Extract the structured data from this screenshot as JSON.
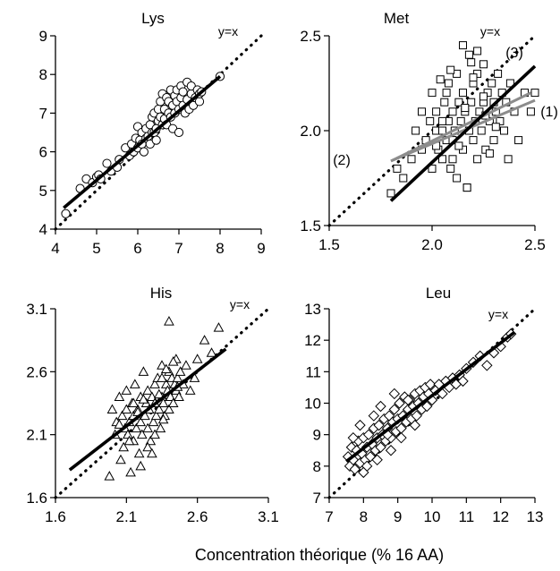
{
  "chart_data": {
    "type": "scatter",
    "xlabel": "Concentration théorique  (% 16 AA)",
    "panels": [
      {
        "title": "Lys",
        "identity_label": "y=x",
        "xlim": [
          4,
          9
        ],
        "ylim": [
          4,
          9
        ],
        "xticks": [
          4,
          5,
          6,
          7,
          8,
          9
        ],
        "yticks": [
          4,
          5,
          6,
          7,
          8,
          9
        ],
        "xtick_labels": [
          "4",
          "5",
          "6",
          "7",
          "8",
          "9"
        ],
        "ytick_labels": [
          "4",
          "5",
          "6",
          "7",
          "8",
          "9"
        ],
        "marker": "circle",
        "fit_lines": [
          {
            "x": [
              4.2,
              8.0
            ],
            "y": [
              4.55,
              7.95
            ],
            "color": "#000000",
            "label": ""
          }
        ],
        "points": {
          "x": [
            4.25,
            4.6,
            4.75,
            4.9,
            5.0,
            5.05,
            5.1,
            5.25,
            5.35,
            5.5,
            5.55,
            5.7,
            5.8,
            5.85,
            5.9,
            5.95,
            6.0,
            6.0,
            6.05,
            6.1,
            6.1,
            6.15,
            6.2,
            6.2,
            6.25,
            6.3,
            6.3,
            6.35,
            6.35,
            6.4,
            6.4,
            6.45,
            6.45,
            6.5,
            6.5,
            6.55,
            6.55,
            6.6,
            6.6,
            6.65,
            6.65,
            6.7,
            6.7,
            6.75,
            6.75,
            6.8,
            6.8,
            6.85,
            6.85,
            6.9,
            6.9,
            6.95,
            6.95,
            7.0,
            7.0,
            7.05,
            7.05,
            7.1,
            7.1,
            7.15,
            7.2,
            7.2,
            7.25,
            7.3,
            7.3,
            7.35,
            7.4,
            7.45,
            7.5,
            7.5,
            7.55,
            8.0
          ],
          "y": [
            4.4,
            5.05,
            5.3,
            5.2,
            5.35,
            5.4,
            5.3,
            5.7,
            5.5,
            5.6,
            5.8,
            6.1,
            5.9,
            6.2,
            6.0,
            6.35,
            6.65,
            6.1,
            6.3,
            6.5,
            6.2,
            6.0,
            6.6,
            6.35,
            6.4,
            6.7,
            6.2,
            6.9,
            6.5,
            6.5,
            7.0,
            6.6,
            6.3,
            7.1,
            6.8,
            6.9,
            7.3,
            6.7,
            7.5,
            6.85,
            7.1,
            7.4,
            6.7,
            7.0,
            7.3,
            6.9,
            7.6,
            7.2,
            6.6,
            7.45,
            7.0,
            7.3,
            7.6,
            6.5,
            7.1,
            7.4,
            7.7,
            7.2,
            7.55,
            7.0,
            7.8,
            7.35,
            7.1,
            7.5,
            7.7,
            7.2,
            7.4,
            7.6,
            7.3,
            7.5,
            7.55,
            7.95
          ]
        }
      },
      {
        "title": "Met",
        "identity_label": "y=x",
        "xlim": [
          1.5,
          2.5
        ],
        "ylim": [
          1.5,
          2.5
        ],
        "xticks": [
          1.5,
          2.0,
          2.5
        ],
        "yticks": [
          1.5,
          2.0,
          2.5
        ],
        "xtick_labels": [
          "1.5",
          "2.0",
          "2.5"
        ],
        "ytick_labels": [
          "1.5",
          "2.0",
          "2.5"
        ],
        "marker": "square",
        "fit_lines": [
          {
            "x": [
              1.8,
              2.5
            ],
            "y": [
              1.63,
              2.34
            ],
            "color": "#000000",
            "label": "(3)"
          },
          {
            "x": [
              1.8,
              2.5
            ],
            "y": [
              1.84,
              2.16
            ],
            "color": "#8c8c8c",
            "label": "(1)"
          },
          {
            "x": [
              1.8,
              2.48
            ],
            "y": [
              1.84,
              2.2
            ],
            "color": "#8c8c8c",
            "label": "(2)"
          }
        ],
        "points": {
          "x": [
            1.8,
            1.83,
            1.86,
            1.9,
            1.92,
            1.95,
            1.95,
            1.97,
            1.99,
            2.0,
            2.0,
            2.02,
            2.02,
            2.03,
            2.04,
            2.05,
            2.05,
            2.06,
            2.07,
            2.08,
            2.08,
            2.09,
            2.1,
            2.1,
            2.11,
            2.12,
            2.12,
            2.13,
            2.14,
            2.15,
            2.15,
            2.16,
            2.17,
            2.18,
            2.18,
            2.19,
            2.2,
            2.2,
            2.21,
            2.22,
            2.22,
            2.23,
            2.24,
            2.25,
            2.25,
            2.26,
            2.27,
            2.28,
            2.29,
            2.3,
            2.3,
            2.31,
            2.32,
            2.33,
            2.34,
            2.35,
            2.36,
            2.37,
            2.38,
            2.4,
            2.42,
            2.45,
            2.48,
            2.5,
            2.05,
            2.07,
            2.1,
            2.13,
            2.16,
            2.19,
            2.22,
            2.25,
            2.28,
            2.31,
            2.15,
            2.17,
            2.2,
            2.09,
            2.02,
            2.26
          ],
          "y": [
            1.67,
            1.8,
            1.75,
            1.85,
            2.0,
            1.9,
            2.1,
            1.95,
            2.05,
            1.8,
            2.2,
            2.0,
            2.1,
            1.9,
            2.27,
            1.85,
            2.0,
            2.15,
            1.95,
            2.25,
            2.05,
            1.8,
            2.1,
            1.95,
            2.0,
            2.3,
            1.75,
            2.15,
            2.05,
            1.9,
            2.2,
            2.1,
            1.7,
            2.4,
            2.0,
            2.15,
            1.95,
            2.25,
            2.05,
            2.3,
            1.85,
            2.1,
            2.0,
            2.35,
            2.15,
            1.9,
            2.2,
            2.05,
            2.25,
            2.15,
            1.95,
            2.1,
            2.3,
            2.05,
            2.2,
            2.0,
            2.15,
            1.85,
            2.25,
            2.1,
            1.95,
            2.2,
            2.1,
            2.2,
            2.05,
            2.2,
            1.85,
            1.92,
            2.12,
            2.36,
            2.42,
            2.18,
            1.88,
            2.02,
            2.45,
            1.7,
            2.28,
            2.32,
            1.92,
            2.08
          ]
        }
      },
      {
        "title": "His",
        "identity_label": "y=x",
        "xlim": [
          1.6,
          3.1
        ],
        "ylim": [
          1.6,
          3.1
        ],
        "xticks": [
          1.6,
          2.1,
          2.6,
          3.1
        ],
        "yticks": [
          1.6,
          2.1,
          2.6,
          3.1
        ],
        "xtick_labels": [
          "1.6",
          "2.1",
          "2.6",
          "3.1"
        ],
        "ytick_labels": [
          "1.6",
          "2.1",
          "2.6",
          "3.1"
        ],
        "marker": "triangle",
        "fit_lines": [
          {
            "x": [
              1.7,
              2.8
            ],
            "y": [
              1.82,
              2.78
            ],
            "color": "#000000",
            "label": ""
          }
        ],
        "points": {
          "x": [
            1.98,
            2.0,
            2.02,
            2.03,
            2.05,
            2.06,
            2.07,
            2.08,
            2.09,
            2.1,
            2.1,
            2.11,
            2.12,
            2.13,
            2.14,
            2.15,
            2.15,
            2.16,
            2.17,
            2.18,
            2.19,
            2.2,
            2.2,
            2.21,
            2.22,
            2.23,
            2.24,
            2.25,
            2.25,
            2.26,
            2.27,
            2.28,
            2.29,
            2.3,
            2.3,
            2.31,
            2.32,
            2.33,
            2.34,
            2.35,
            2.35,
            2.36,
            2.37,
            2.38,
            2.39,
            2.4,
            2.4,
            2.41,
            2.42,
            2.43,
            2.44,
            2.45,
            2.45,
            2.46,
            2.47,
            2.48,
            2.5,
            2.52,
            2.55,
            2.58,
            2.6,
            2.65,
            2.7,
            2.75,
            2.2,
            2.25,
            2.3,
            2.35,
            2.4,
            2.15,
            2.28,
            2.33,
            2.38,
            2.43,
            2.05,
            2.18,
            2.12,
            2.22,
            2.36,
            2.46
          ],
          "y": [
            1.77,
            2.3,
            2.1,
            2.2,
            2.4,
            1.9,
            2.25,
            2.0,
            2.15,
            2.3,
            2.45,
            2.1,
            2.2,
            1.8,
            2.35,
            2.05,
            2.25,
            2.5,
            2.15,
            2.3,
            1.95,
            2.2,
            2.4,
            2.1,
            2.6,
            2.25,
            2.35,
            2.15,
            2.45,
            2.3,
            2.05,
            2.4,
            2.2,
            2.5,
            2.35,
            2.25,
            2.55,
            2.3,
            2.15,
            2.4,
            2.65,
            2.35,
            2.25,
            2.5,
            2.45,
            2.3,
            2.6,
            2.4,
            2.55,
            2.35,
            2.5,
            2.45,
            2.7,
            2.55,
            2.4,
            2.6,
            2.5,
            2.65,
            2.45,
            2.55,
            2.7,
            2.85,
            2.75,
            2.95,
            1.85,
            2.0,
            2.1,
            2.55,
            3.0,
            2.35,
            1.95,
            2.42,
            2.62,
            2.68,
            2.18,
            2.28,
            2.05,
            2.38,
            2.22,
            2.48
          ]
        }
      },
      {
        "title": "Leu",
        "identity_label": "y=x",
        "xlim": [
          7,
          13
        ],
        "ylim": [
          7,
          13
        ],
        "xticks": [
          7,
          8,
          9,
          10,
          11,
          12,
          13
        ],
        "yticks": [
          7,
          8,
          9,
          10,
          11,
          12,
          13
        ],
        "xtick_labels": [
          "7",
          "8",
          "9",
          "10",
          "11",
          "12",
          "13"
        ],
        "ytick_labels": [
          "7",
          "8",
          "9",
          "10",
          "11",
          "12",
          "13"
        ],
        "marker": "diamond",
        "fit_lines": [
          {
            "x": [
              7.5,
              12.4
            ],
            "y": [
              8.15,
              12.25
            ],
            "color": "#000000",
            "label": ""
          }
        ],
        "points": {
          "x": [
            7.55,
            7.6,
            7.65,
            7.7,
            7.75,
            7.8,
            7.85,
            7.9,
            7.95,
            8.0,
            8.05,
            8.1,
            8.15,
            8.2,
            8.25,
            8.3,
            8.35,
            8.4,
            8.45,
            8.5,
            8.55,
            8.6,
            8.65,
            8.7,
            8.75,
            8.8,
            8.85,
            8.9,
            8.95,
            9.0,
            9.05,
            9.1,
            9.15,
            9.2,
            9.25,
            9.3,
            9.35,
            9.4,
            9.45,
            9.5,
            9.55,
            9.6,
            9.65,
            9.7,
            9.75,
            9.8,
            9.85,
            9.9,
            9.95,
            10.0,
            10.1,
            10.2,
            10.3,
            10.4,
            10.5,
            10.6,
            10.7,
            10.8,
            10.9,
            11.0,
            11.2,
            11.4,
            11.6,
            11.8,
            12.0,
            12.2,
            12.3,
            7.7,
            7.9,
            8.1,
            8.3,
            8.5,
            8.7,
            8.9,
            9.1,
            9.3,
            9.5,
            8.0,
            8.4,
            8.8
          ],
          "y": [
            8.3,
            8.0,
            8.6,
            8.2,
            7.9,
            8.5,
            8.8,
            8.1,
            8.4,
            8.9,
            8.2,
            8.6,
            9.0,
            8.3,
            8.7,
            9.2,
            8.5,
            8.9,
            9.3,
            8.6,
            9.0,
            9.5,
            8.8,
            9.2,
            9.6,
            8.9,
            9.4,
            9.8,
            9.1,
            9.5,
            10.0,
            9.2,
            9.6,
            10.2,
            9.4,
            9.8,
            10.1,
            9.5,
            9.9,
            10.3,
            9.6,
            10.0,
            10.4,
            9.8,
            10.2,
            10.5,
            9.9,
            10.3,
            10.6,
            10.1,
            10.4,
            10.6,
            10.3,
            10.7,
            10.5,
            10.8,
            10.6,
            10.9,
            10.7,
            11.1,
            11.3,
            11.5,
            11.2,
            11.6,
            11.8,
            12.1,
            12.2,
            8.9,
            9.3,
            8.0,
            9.6,
            9.9,
            9.0,
            10.3,
            8.9,
            10.1,
            9.3,
            7.8,
            8.2,
            8.5
          ]
        }
      }
    ]
  }
}
